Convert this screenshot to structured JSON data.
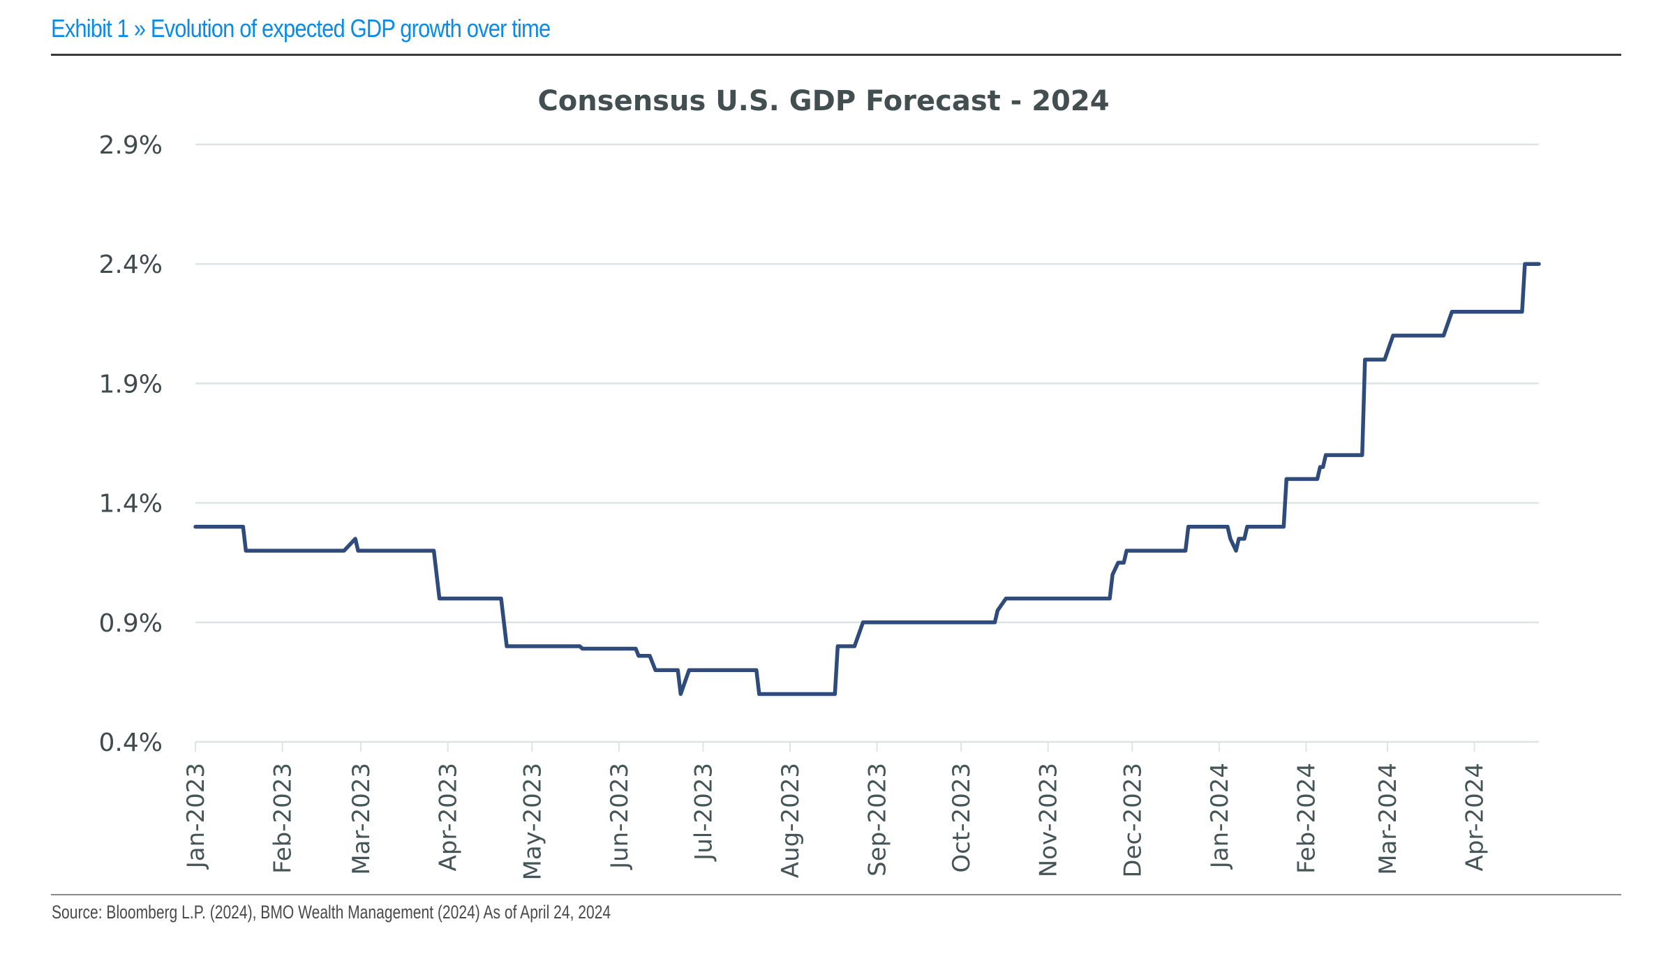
{
  "header": {
    "exhibit_title": "Exhibit 1 » Evolution of expected GDP growth over time"
  },
  "footer": {
    "source": "Source: Bloomberg L.P. (2024), BMO Wealth Management (2024)  As of April 24, 2024"
  },
  "colors": {
    "exhibit_title": "#0a8be8",
    "series_line": "#2e4b7b",
    "chart_title": "#424e50",
    "gridline": "#dde4e4"
  },
  "chart_data": {
    "type": "line",
    "title": "Consensus U.S. GDP Forecast - 2024",
    "xlabel": "",
    "ylabel": "",
    "ylim": [
      0.4,
      2.9
    ],
    "xlim": [
      "2023-01-01",
      "2024-04-24"
    ],
    "yticks": [
      {
        "value": 2.9,
        "label": "2.9%"
      },
      {
        "value": 2.4,
        "label": "2.4%"
      },
      {
        "value": 1.9,
        "label": "1.9%"
      },
      {
        "value": 1.4,
        "label": "1.4%"
      },
      {
        "value": 0.9,
        "label": "0.9%"
      },
      {
        "value": 0.4,
        "label": "0.4%"
      }
    ],
    "xticks": [
      {
        "date": "2023-01-01",
        "label": "Jan-2023"
      },
      {
        "date": "2023-02-01",
        "label": "Feb-2023"
      },
      {
        "date": "2023-03-01",
        "label": "Mar-2023"
      },
      {
        "date": "2023-04-01",
        "label": "Apr-2023"
      },
      {
        "date": "2023-05-01",
        "label": "May-2023"
      },
      {
        "date": "2023-06-01",
        "label": "Jun-2023"
      },
      {
        "date": "2023-07-01",
        "label": "Jul-2023"
      },
      {
        "date": "2023-08-01",
        "label": "Aug-2023"
      },
      {
        "date": "2023-09-01",
        "label": "Sep-2023"
      },
      {
        "date": "2023-10-01",
        "label": "Oct-2023"
      },
      {
        "date": "2023-11-01",
        "label": "Nov-2023"
      },
      {
        "date": "2023-12-01",
        "label": "Dec-2023"
      },
      {
        "date": "2024-01-01",
        "label": "Jan-2024"
      },
      {
        "date": "2024-02-01",
        "label": "Feb-2024"
      },
      {
        "date": "2024-03-01",
        "label": "Mar-2024"
      },
      {
        "date": "2024-04-01",
        "label": "Apr-2024"
      }
    ],
    "grid": true,
    "legend": "none",
    "series": [
      {
        "name": "Consensus U.S. GDP Forecast - 2024 (%)",
        "points": [
          [
            "2023-01-01",
            1.3
          ],
          [
            "2023-01-18",
            1.3
          ],
          [
            "2023-01-19",
            1.2
          ],
          [
            "2023-02-23",
            1.2
          ],
          [
            "2023-02-27",
            1.25
          ],
          [
            "2023-02-28",
            1.2
          ],
          [
            "2023-03-27",
            1.2
          ],
          [
            "2023-03-29",
            1.0
          ],
          [
            "2023-04-20",
            1.0
          ],
          [
            "2023-04-22",
            0.8
          ],
          [
            "2023-05-18",
            0.8
          ],
          [
            "2023-05-19",
            0.79
          ],
          [
            "2023-06-07",
            0.79
          ],
          [
            "2023-06-08",
            0.76
          ],
          [
            "2023-06-12",
            0.76
          ],
          [
            "2023-06-14",
            0.7
          ],
          [
            "2023-06-22",
            0.7
          ],
          [
            "2023-06-23",
            0.6
          ],
          [
            "2023-06-26",
            0.7
          ],
          [
            "2023-07-20",
            0.7
          ],
          [
            "2023-07-21",
            0.6
          ],
          [
            "2023-08-17",
            0.6
          ],
          [
            "2023-08-18",
            0.8
          ],
          [
            "2023-08-24",
            0.8
          ],
          [
            "2023-08-27",
            0.9
          ],
          [
            "2023-10-13",
            0.9
          ],
          [
            "2023-10-14",
            0.95
          ],
          [
            "2023-10-17",
            1.0
          ],
          [
            "2023-11-23",
            1.0
          ],
          [
            "2023-11-24",
            1.1
          ],
          [
            "2023-11-26",
            1.15
          ],
          [
            "2023-11-28",
            1.15
          ],
          [
            "2023-11-29",
            1.2
          ],
          [
            "2023-12-20",
            1.2
          ],
          [
            "2023-12-21",
            1.3
          ],
          [
            "2024-01-04",
            1.3
          ],
          [
            "2024-01-05",
            1.25
          ],
          [
            "2024-01-07",
            1.2
          ],
          [
            "2024-01-08",
            1.25
          ],
          [
            "2024-01-10",
            1.25
          ],
          [
            "2024-01-11",
            1.3
          ],
          [
            "2024-01-24",
            1.3
          ],
          [
            "2024-01-25",
            1.5
          ],
          [
            "2024-02-05",
            1.5
          ],
          [
            "2024-02-06",
            1.55
          ],
          [
            "2024-02-07",
            1.55
          ],
          [
            "2024-02-08",
            1.6
          ],
          [
            "2024-02-21",
            1.6
          ],
          [
            "2024-02-22",
            2.0
          ],
          [
            "2024-02-29",
            2.0
          ],
          [
            "2024-03-03",
            2.1
          ],
          [
            "2024-03-21",
            2.1
          ],
          [
            "2024-03-24",
            2.2
          ],
          [
            "2024-04-18",
            2.2
          ],
          [
            "2024-04-19",
            2.4
          ],
          [
            "2024-04-24",
            2.4
          ]
        ]
      }
    ]
  }
}
